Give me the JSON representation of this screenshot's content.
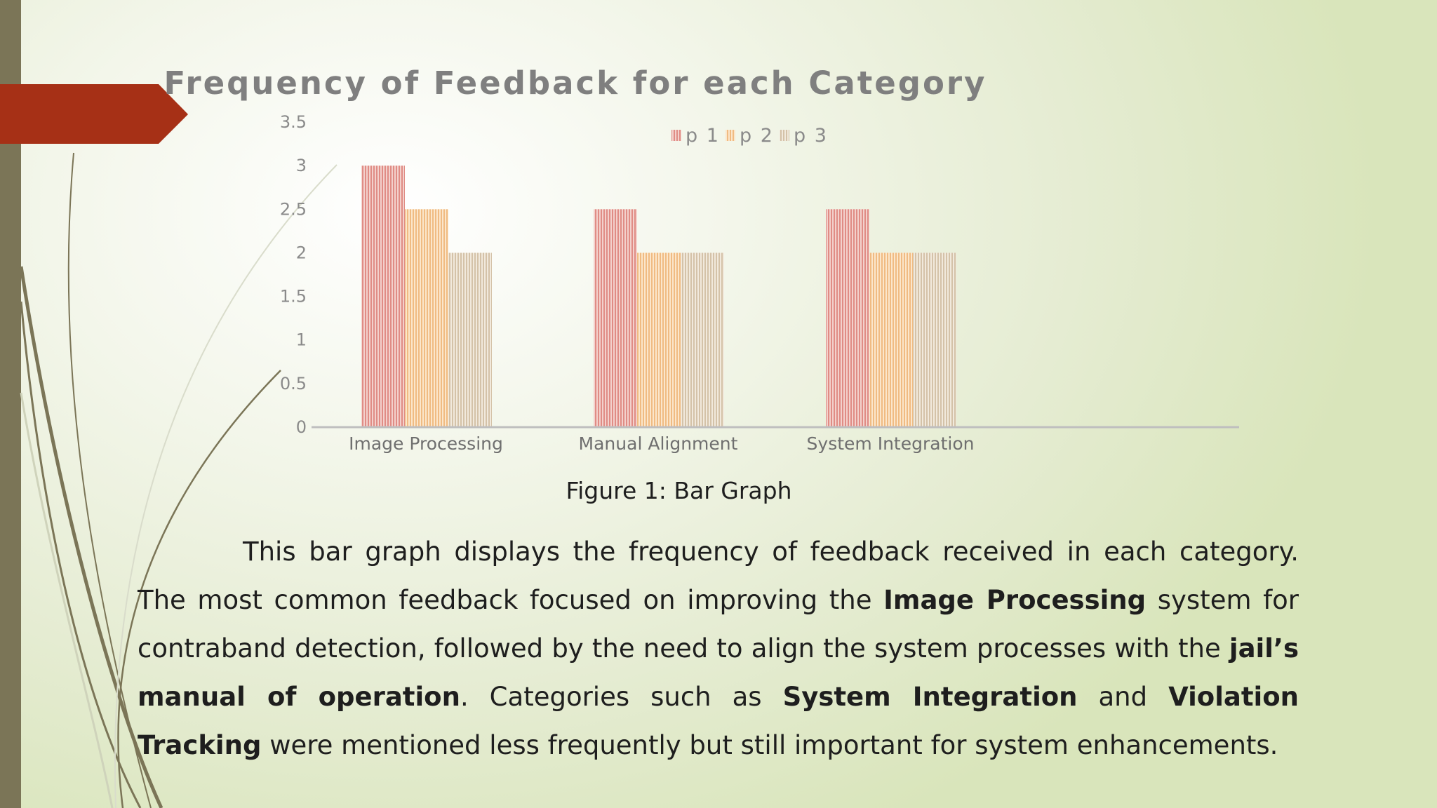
{
  "chart_data": {
    "type": "bar",
    "title": "Frequency of Feedback for each Category",
    "categories": [
      "Image Processing",
      "Manual Alignment",
      "System Integration"
    ],
    "series": [
      {
        "name": "p 1",
        "values": [
          3,
          2.5,
          2.5
        ]
      },
      {
        "name": "p 2",
        "values": [
          2.5,
          2,
          2
        ]
      },
      {
        "name": "p 3",
        "values": [
          2,
          2,
          2
        ]
      }
    ],
    "ylim": [
      0,
      3.5
    ],
    "yticks": [
      "0",
      "0.5",
      "1",
      "1.5",
      "2",
      "2.5",
      "3",
      "3.5"
    ],
    "xlabel": "",
    "ylabel": "",
    "legend_position": "top",
    "grid": false,
    "colors": [
      "#e8a6a0",
      "#f5cfa0",
      "#e3d3bd"
    ]
  },
  "caption": "Figure 1: Bar Graph",
  "paragraph": {
    "t1": "This bar graph displays the frequency of feedback received in each category. The most common feedback focused on improving the ",
    "b1": "Image Processing",
    "t2": " system for contraband detection, followed by the need to align the system processes with the ",
    "b2": "jail’s manual of operation",
    "t3": ". Categories such as ",
    "b3": "System Integration",
    "t4": " and ",
    "b4": "Violation Tracking",
    "t5": " were mentioned less frequently but still important for system enhancements."
  },
  "theme": {
    "left_bar_color": "#7b7557",
    "arrow_color": "#a63016"
  }
}
